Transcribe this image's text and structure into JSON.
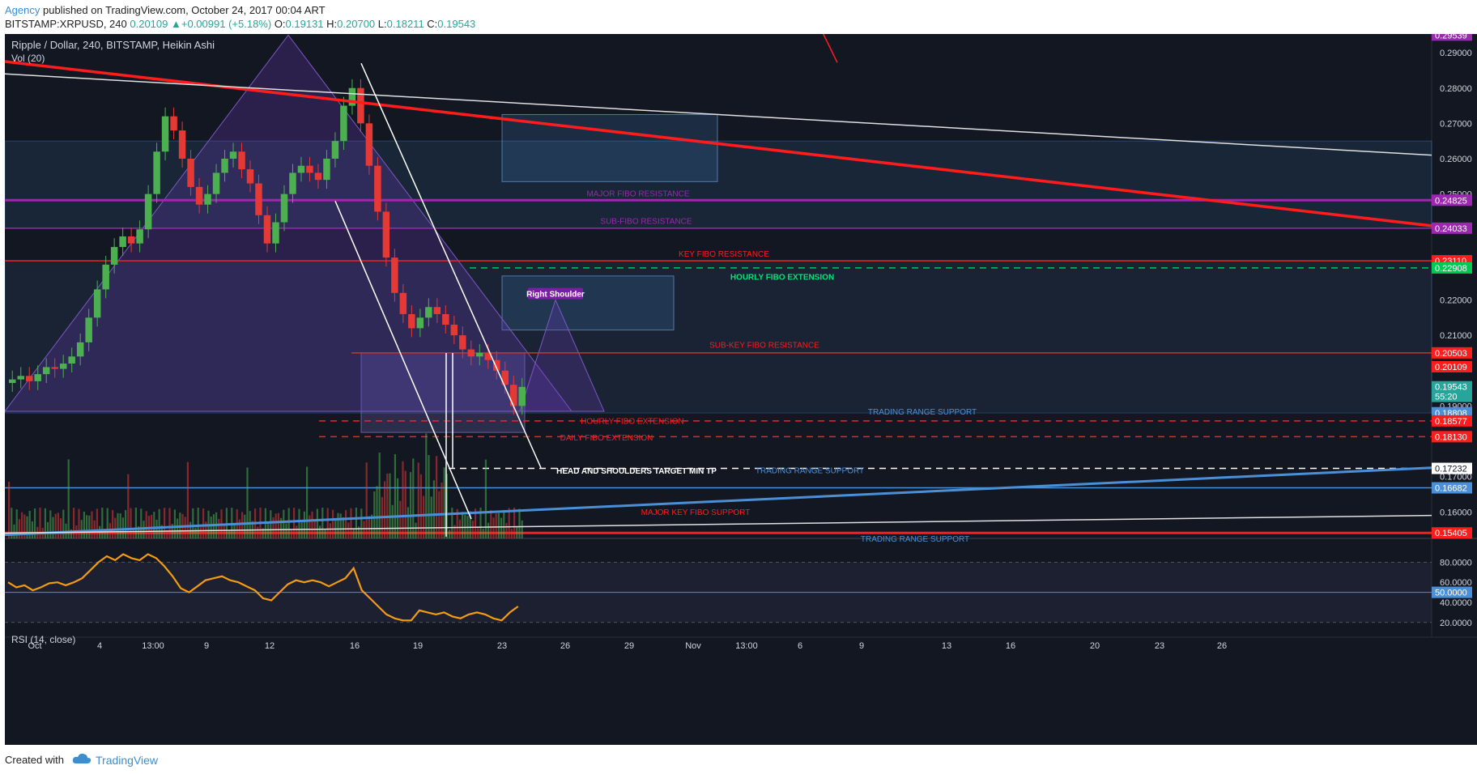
{
  "header": {
    "author": "Agency",
    "published_text": " published on TradingView.com, October 24, 2017 00:04 ART",
    "symbol": "BITSTAMP:XRPUSD, 240",
    "last": "0.20109",
    "change": "+0.00991 (+5.18%)",
    "o_label": "O:",
    "o_value": "0.19131",
    "h_label": "H:",
    "h_value": "0.20700",
    "l_label": "L:",
    "l_value": "0.18211",
    "c_label": "C:",
    "c_value": "0.19543"
  },
  "legend": {
    "title": "Ripple / Dollar, 240, BITSTAMP, Heikin Ashi",
    "volume": "Vol (20)",
    "rsi": "RSI (14, close)"
  },
  "footer": {
    "created_with": "Created with",
    "brand": "TradingView"
  },
  "colors": {
    "background": "#131722",
    "up": "#26a69a",
    "candle_up": "#4caf50",
    "candle_down": "#e53935",
    "purple": "#9c27b0",
    "red": "#ff1c1c",
    "green": "#00e676",
    "blue": "#4a90d9",
    "rsi": "#f39c12"
  },
  "chart_data": [
    {
      "type": "candlestick",
      "title": "Ripple / Dollar, 240, BITSTAMP, Heikin Ashi",
      "y_ticks": [
        "0.29000",
        "0.28000",
        "0.27000",
        "0.26000",
        "0.25000",
        "0.22000",
        "0.21000",
        "0.19000",
        "0.17000",
        "0.16000"
      ],
      "ylim": [
        0.1525,
        0.2953
      ],
      "x_ticks": [
        "Oct",
        "4",
        "13:00",
        "9",
        "12",
        "16",
        "19",
        "23",
        "26",
        "29",
        "Nov",
        "13:00",
        "6",
        "9",
        "13",
        "16",
        "20",
        "23",
        "26"
      ],
      "price_tags": [
        {
          "value": "0.29539",
          "color": "#9c27b0"
        },
        {
          "value": "0.24825",
          "color": "#9c27b0"
        },
        {
          "value": "0.24033",
          "color": "#9c27b0"
        },
        {
          "value": "0.23110",
          "color": "#ff1c1c"
        },
        {
          "value": "0.22908",
          "color": "#00c853"
        },
        {
          "value": "0.20503",
          "color": "#ff1c1c"
        },
        {
          "value": "0.20109",
          "color": "#ff1c1c"
        },
        {
          "value": "0.19543",
          "color": "#26a69a"
        },
        {
          "value": "55:20",
          "color": "#26a69a"
        },
        {
          "value": "0.18808",
          "color": "#4a90d9"
        },
        {
          "value": "0.18577",
          "color": "#ff1c1c"
        },
        {
          "value": "0.18130",
          "color": "#ff1c1c"
        },
        {
          "value": "0.17232",
          "color": "#ffffff"
        },
        {
          "value": "0.16682",
          "color": "#4a90d9"
        },
        {
          "value": "0.15405",
          "color": "#ff1c1c"
        }
      ],
      "horizontal_levels": [
        {
          "price": 0.24825,
          "color": "#9c27b0",
          "style": "solid"
        },
        {
          "price": 0.24033,
          "color": "#9c27b0",
          "style": "solid"
        },
        {
          "price": 0.2311,
          "color": "#d32f2f",
          "style": "solid"
        },
        {
          "price": 0.22908,
          "color": "#00c853",
          "style": "dashed"
        },
        {
          "price": 0.20503,
          "color": "#d32f2f",
          "style": "solid"
        },
        {
          "price": 0.18577,
          "color": "#ff1c1c",
          "style": "dashed"
        },
        {
          "price": 0.1813,
          "color": "#ff1c1c",
          "style": "dashed"
        },
        {
          "price": 0.17232,
          "color": "#ffffff",
          "style": "dashed"
        },
        {
          "price": 0.16682,
          "color": "#4a90d9",
          "style": "solid"
        },
        {
          "price": 0.15405,
          "color": "#ff1c1c",
          "style": "solid"
        }
      ],
      "annotations": [
        {
          "text": "MAJOR FIBO RESISTANCE",
          "color": "#9c27b0"
        },
        {
          "text": "SUB-FIBO RESISTANCE",
          "color": "#9c27b0"
        },
        {
          "text": "KEY FIBO RESISTANCE",
          "color": "#ff1c1c"
        },
        {
          "text": "HOURLY FIBO EXTENSION",
          "color": "#00e676"
        },
        {
          "text": "Right Shoulder",
          "color": "#ffffff"
        },
        {
          "text": "SUB-KEY FIBO RESISTANCE",
          "color": "#ff1c1c"
        },
        {
          "text": "TRADING RANGE SUPPORT",
          "color": "#4a90d9"
        },
        {
          "text": "HOURLY FIBO EXTENSION",
          "color": "#ff1c1c"
        },
        {
          "text": "DAILY FIBO EXTENSION",
          "color": "#ff1c1c"
        },
        {
          "text": "HEAD AND SHOULDERS TARGET MIN TP",
          "color": "#ffffff"
        },
        {
          "text": "TRADING RANGE SUPPORT",
          "color": "#4a90d9"
        },
        {
          "text": "MAJOR KEY FIBO SUPPORT",
          "color": "#ff1c1c"
        },
        {
          "text": "TRADING RANGE SUPPORT",
          "color": "#4a90d9"
        }
      ],
      "close_series": [
        0.1975,
        0.1985,
        0.197,
        0.199,
        0.201,
        0.2005,
        0.202,
        0.204,
        0.208,
        0.215,
        0.223,
        0.23,
        0.235,
        0.238,
        0.236,
        0.24,
        0.25,
        0.262,
        0.272,
        0.268,
        0.26,
        0.252,
        0.247,
        0.25,
        0.256,
        0.26,
        0.262,
        0.257,
        0.253,
        0.244,
        0.236,
        0.242,
        0.25,
        0.256,
        0.258,
        0.256,
        0.254,
        0.26,
        0.265,
        0.275,
        0.28,
        0.27,
        0.258,
        0.245,
        0.232,
        0.222,
        0.216,
        0.212,
        0.215,
        0.218,
        0.216,
        0.213,
        0.21,
        0.206,
        0.204,
        0.205,
        0.203,
        0.2,
        0.196,
        0.19,
        0.1954
      ]
    },
    {
      "type": "bar",
      "title": "Vol (20)"
    },
    {
      "type": "line",
      "title": "RSI (14, close)",
      "y_ticks": [
        "80.0000",
        "60.0000",
        "50.0000",
        "40.0000",
        "20.0000"
      ],
      "ylim": [
        15,
        90
      ],
      "values": [
        60,
        55,
        57,
        52,
        55,
        59,
        60,
        57,
        60,
        64,
        72,
        80,
        86,
        82,
        88,
        84,
        82,
        88,
        84,
        76,
        66,
        54,
        50,
        56,
        62,
        64,
        66,
        62,
        60,
        56,
        52,
        44,
        42,
        50,
        58,
        62,
        60,
        62,
        60,
        56,
        60,
        64,
        74,
        52,
        44,
        36,
        28,
        24,
        22,
        22,
        32,
        30,
        28,
        30,
        26,
        24,
        28,
        30,
        28,
        24,
        22,
        30,
        36
      ]
    }
  ]
}
